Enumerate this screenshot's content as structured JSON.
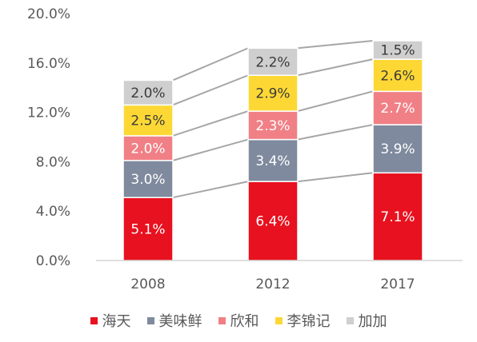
{
  "chart_data": {
    "type": "bar",
    "stacked": true,
    "categories": [
      "2008",
      "2012",
      "2017"
    ],
    "series": [
      {
        "name": "海天",
        "color": "#e8111f",
        "values": [
          5.1,
          6.4,
          7.1
        ],
        "labels": [
          "5.1%",
          "6.4%",
          "7.1%"
        ],
        "label_color": "#ffffff"
      },
      {
        "name": "美味鲜",
        "color": "#7f8a9e",
        "values": [
          3.0,
          3.4,
          3.9
        ],
        "labels": [
          "3.0%",
          "3.4%",
          "3.9%"
        ],
        "label_color": "#ffffff"
      },
      {
        "name": "欣和",
        "color": "#f08086",
        "values": [
          2.0,
          2.3,
          2.7
        ],
        "labels": [
          "2.0%",
          "2.3%",
          "2.7%"
        ],
        "label_color": "#ffffff"
      },
      {
        "name": "李锦记",
        "color": "#fdd835",
        "values": [
          2.5,
          2.9,
          2.6
        ],
        "labels": [
          "2.5%",
          "2.9%",
          "2.6%"
        ],
        "label_color": "#3a3a3a"
      },
      {
        "name": "加加",
        "color": "#cfcfcf",
        "values": [
          2.0,
          2.2,
          1.5
        ],
        "labels": [
          "2.0%",
          "2.2%",
          "1.5%"
        ],
        "label_color": "#3a3a3a"
      }
    ],
    "ylim": [
      0,
      20
    ],
    "y_ticks": [
      0,
      4,
      8,
      12,
      16,
      20
    ],
    "y_tick_labels": [
      "0.0%",
      "4.0%",
      "8.0%",
      "12.0%",
      "16.0%",
      "20.0%"
    ],
    "grid": false,
    "series_lines": true,
    "series_line_color": "#a6a6a6",
    "legend_position": "bottom",
    "title": "",
    "xlabel": "",
    "ylabel": ""
  }
}
